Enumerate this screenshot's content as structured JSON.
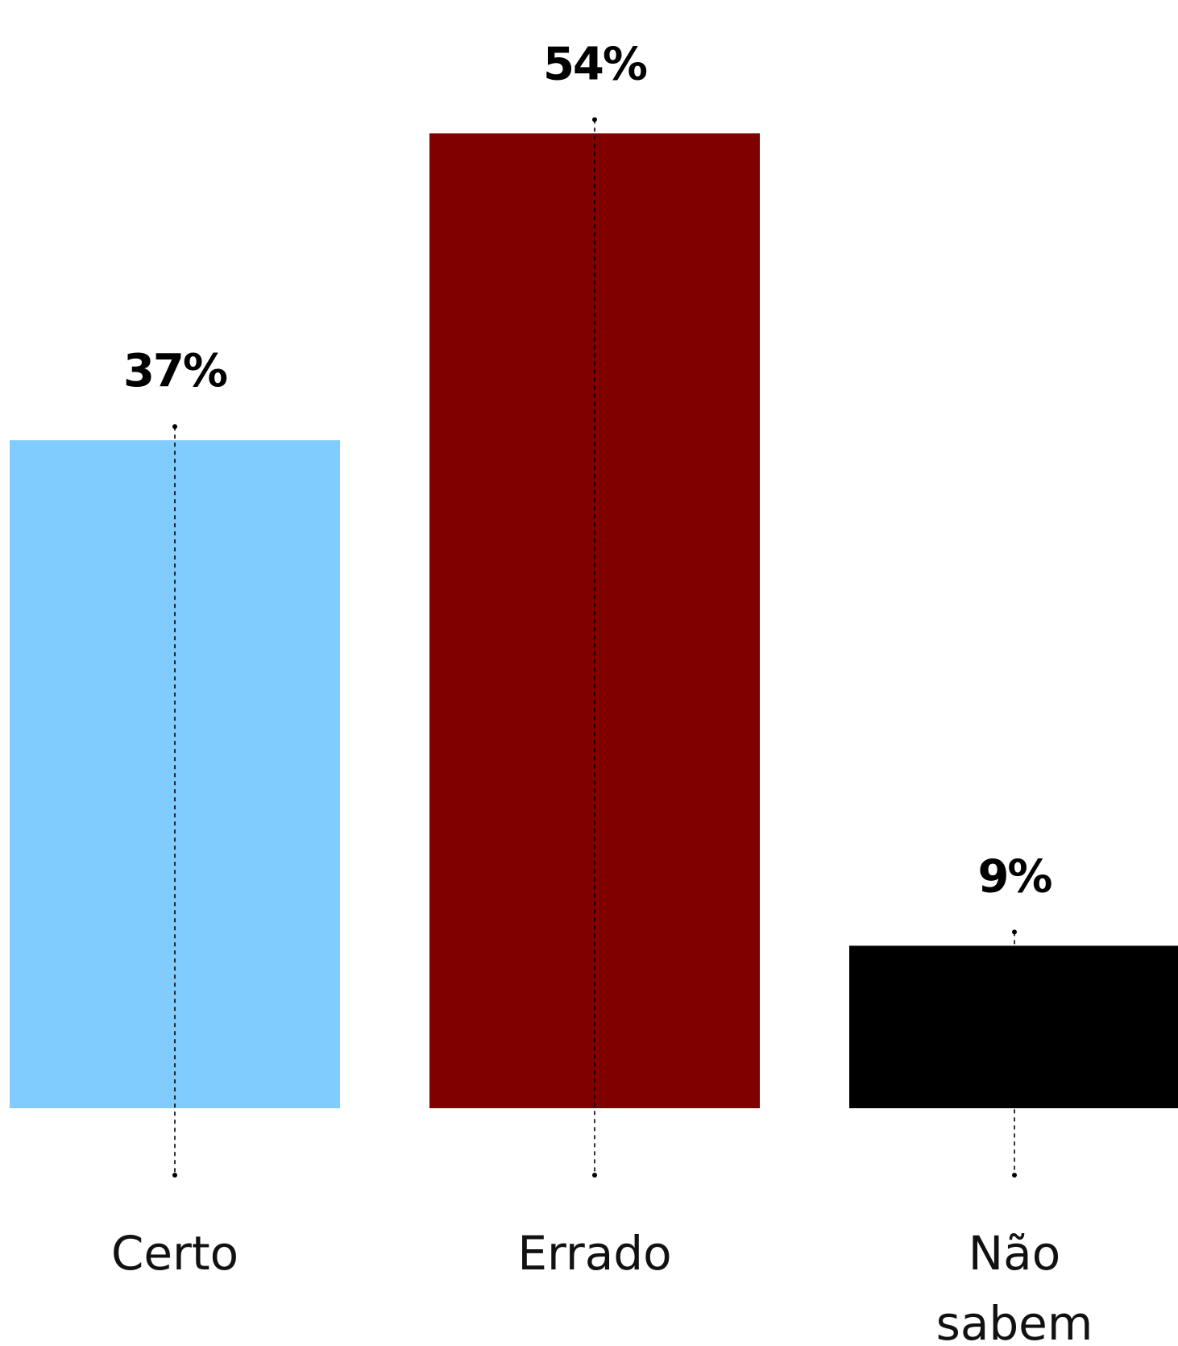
{
  "chart_data": {
    "type": "bar",
    "categories": [
      "Certo",
      "Errado",
      "Não sabem"
    ],
    "values": [
      37,
      54,
      9
    ],
    "value_labels": [
      "37%",
      "54%",
      "9%"
    ],
    "category_label_lines": [
      [
        "Certo"
      ],
      [
        "Errado"
      ],
      [
        "Não",
        "sabem"
      ]
    ],
    "colors": [
      "#80ccff",
      "#800000",
      "#000000"
    ],
    "unit": "%",
    "ylim": [
      0,
      60
    ],
    "grid": false,
    "legend": "none",
    "title": "",
    "xlabel": "",
    "ylabel": ""
  }
}
